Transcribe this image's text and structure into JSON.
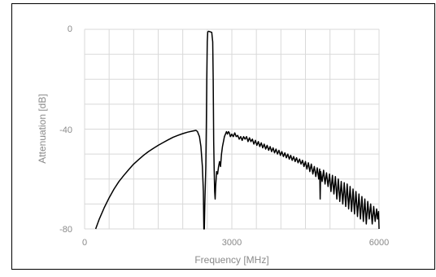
{
  "chart_data": {
    "type": "line",
    "title": "",
    "xlabel": "Frequency [MHz]",
    "ylabel": "Attenuation  [dB]",
    "xlim": [
      0,
      6000
    ],
    "ylim": [
      -80,
      0
    ],
    "x_ticks": [
      "0",
      "3000",
      "6000"
    ],
    "y_ticks": [
      "0",
      "-40",
      "-80"
    ],
    "grid": true,
    "legend": "none",
    "colors": {
      "line": "#000000",
      "grid": "#d9d9d9",
      "axis_text": "#8a8a8a",
      "frame": "#000000"
    },
    "series": [
      {
        "values": [
          [
            225,
            -80
          ],
          [
            300,
            -76
          ],
          [
            400,
            -71.5
          ],
          [
            500,
            -67.5
          ],
          [
            600,
            -64
          ],
          [
            700,
            -61
          ],
          [
            800,
            -58.5
          ],
          [
            900,
            -56.2
          ],
          [
            1000,
            -54
          ],
          [
            1100,
            -52.2
          ],
          [
            1200,
            -50.5
          ],
          [
            1300,
            -49
          ],
          [
            1400,
            -47.7
          ],
          [
            1500,
            -46.5
          ],
          [
            1600,
            -45.4
          ],
          [
            1700,
            -44.3
          ],
          [
            1800,
            -43.3
          ],
          [
            1900,
            -42.5
          ],
          [
            2000,
            -41.8
          ],
          [
            2100,
            -41.2
          ],
          [
            2200,
            -40.8
          ],
          [
            2270,
            -40.5
          ],
          [
            2300,
            -41
          ],
          [
            2340,
            -43
          ],
          [
            2370,
            -47
          ],
          [
            2400,
            -55
          ],
          [
            2420,
            -65
          ],
          [
            2430,
            -80
          ],
          [
            2440,
            -80
          ],
          [
            2450,
            -70
          ],
          [
            2470,
            -55
          ],
          [
            2480,
            -40
          ],
          [
            2490,
            -20
          ],
          [
            2500,
            -5
          ],
          [
            2510,
            -1
          ],
          [
            2530,
            -0.8
          ],
          [
            2560,
            -1
          ],
          [
            2590,
            -1.2
          ],
          [
            2610,
            -5
          ],
          [
            2620,
            -20
          ],
          [
            2630,
            -45
          ],
          [
            2640,
            -56
          ],
          [
            2650,
            -65
          ],
          [
            2660,
            -68
          ],
          [
            2670,
            -63
          ],
          [
            2690,
            -57
          ],
          [
            2710,
            -58
          ],
          [
            2730,
            -55
          ],
          [
            2750,
            -53
          ],
          [
            2770,
            -55
          ],
          [
            2790,
            -50
          ],
          [
            2810,
            -47
          ],
          [
            2830,
            -45
          ],
          [
            2850,
            -43
          ],
          [
            2870,
            -42
          ],
          [
            2890,
            -41
          ],
          [
            2910,
            -42
          ],
          [
            2930,
            -41
          ],
          [
            2950,
            -41.5
          ],
          [
            2970,
            -43
          ],
          [
            3000,
            -42
          ],
          [
            3030,
            -43
          ],
          [
            3060,
            -41.5
          ],
          [
            3090,
            -43
          ],
          [
            3120,
            -42.5
          ],
          [
            3150,
            -44
          ],
          [
            3180,
            -43
          ],
          [
            3210,
            -44.5
          ],
          [
            3240,
            -43
          ],
          [
            3270,
            -44
          ],
          [
            3300,
            -43
          ],
          [
            3330,
            -45
          ],
          [
            3360,
            -43.5
          ],
          [
            3390,
            -45
          ],
          [
            3420,
            -44
          ],
          [
            3450,
            -46
          ],
          [
            3480,
            -44.5
          ],
          [
            3510,
            -46.5
          ],
          [
            3540,
            -45
          ],
          [
            3570,
            -47
          ],
          [
            3600,
            -45.5
          ],
          [
            3630,
            -47.5
          ],
          [
            3660,
            -46
          ],
          [
            3690,
            -48
          ],
          [
            3720,
            -46.5
          ],
          [
            3750,
            -48.5
          ],
          [
            3780,
            -47
          ],
          [
            3810,
            -49
          ],
          [
            3840,
            -47.5
          ],
          [
            3870,
            -49.5
          ],
          [
            3900,
            -48
          ],
          [
            3930,
            -50
          ],
          [
            3960,
            -48.5
          ],
          [
            3990,
            -50.5
          ],
          [
            4020,
            -49
          ],
          [
            4050,
            -51
          ],
          [
            4080,
            -49.5
          ],
          [
            4110,
            -51.5
          ],
          [
            4140,
            -50
          ],
          [
            4170,
            -52
          ],
          [
            4200,
            -50.5
          ],
          [
            4230,
            -52.5
          ],
          [
            4260,
            -51
          ],
          [
            4290,
            -53
          ],
          [
            4320,
            -51.5
          ],
          [
            4350,
            -53.5
          ],
          [
            4380,
            -52
          ],
          [
            4410,
            -54
          ],
          [
            4440,
            -52.5
          ],
          [
            4470,
            -55
          ],
          [
            4500,
            -53
          ],
          [
            4530,
            -56
          ],
          [
            4560,
            -53.5
          ],
          [
            4590,
            -57
          ],
          [
            4620,
            -54
          ],
          [
            4650,
            -58
          ],
          [
            4680,
            -55
          ],
          [
            4710,
            -59
          ],
          [
            4740,
            -55.5
          ],
          [
            4770,
            -60
          ],
          [
            4790,
            -56
          ],
          [
            4800,
            -68
          ],
          [
            4810,
            -57
          ],
          [
            4840,
            -61
          ],
          [
            4870,
            -56.5
          ],
          [
            4900,
            -62
          ],
          [
            4930,
            -57.5
          ],
          [
            4960,
            -63
          ],
          [
            4990,
            -58
          ],
          [
            5020,
            -65
          ],
          [
            5050,
            -58.5
          ],
          [
            5080,
            -66
          ],
          [
            5110,
            -59
          ],
          [
            5140,
            -68
          ],
          [
            5170,
            -60
          ],
          [
            5200,
            -69
          ],
          [
            5230,
            -61
          ],
          [
            5260,
            -70
          ],
          [
            5290,
            -61.5
          ],
          [
            5320,
            -71
          ],
          [
            5350,
            -62
          ],
          [
            5380,
            -72
          ],
          [
            5410,
            -63
          ],
          [
            5440,
            -73
          ],
          [
            5470,
            -64
          ],
          [
            5500,
            -74
          ],
          [
            5530,
            -65
          ],
          [
            5560,
            -75
          ],
          [
            5590,
            -66
          ],
          [
            5620,
            -76
          ],
          [
            5650,
            -67
          ],
          [
            5680,
            -77
          ],
          [
            5710,
            -68
          ],
          [
            5740,
            -78
          ],
          [
            5770,
            -69
          ],
          [
            5800,
            -76
          ],
          [
            5830,
            -70
          ],
          [
            5860,
            -78
          ],
          [
            5890,
            -71
          ],
          [
            5920,
            -77
          ],
          [
            5950,
            -72
          ],
          [
            5970,
            -76
          ],
          [
            5990,
            -73
          ],
          [
            6000,
            -80
          ]
        ]
      }
    ]
  }
}
